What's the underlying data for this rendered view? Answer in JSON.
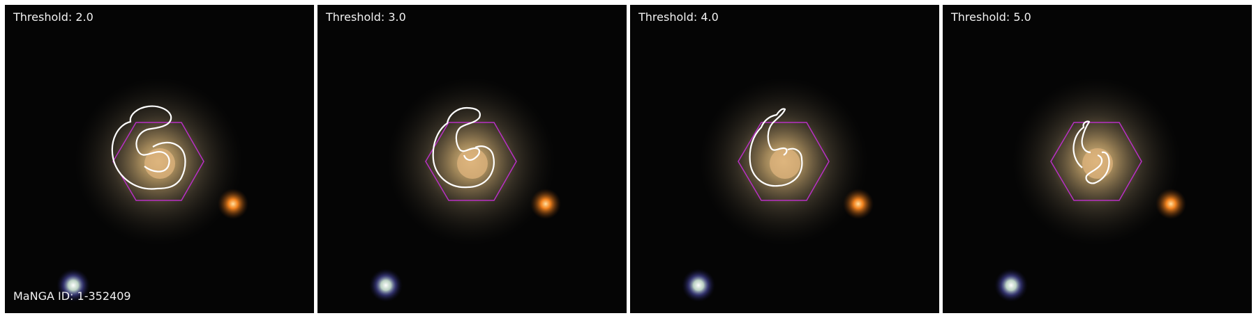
{
  "panels": [
    {
      "threshold_label": "Threshold: 2.0",
      "threshold": 2.0
    },
    {
      "threshold_label": "Threshold: 3.0",
      "threshold": 3.0
    },
    {
      "threshold_label": "Threshold: 4.0",
      "threshold": 4.0
    },
    {
      "threshold_label": "Threshold: 5.0",
      "threshold": 5.0
    }
  ],
  "manga_id_label": "MaNGA ID: 1-352409",
  "colors": {
    "background": "#050505",
    "hexagon": "#b830c4",
    "contour": "#ffffff",
    "galaxy_core": "#d8b070",
    "red_star": "#ff8a20",
    "blue_star": "#e8f4ff",
    "label_text": "#f2f2f2"
  }
}
